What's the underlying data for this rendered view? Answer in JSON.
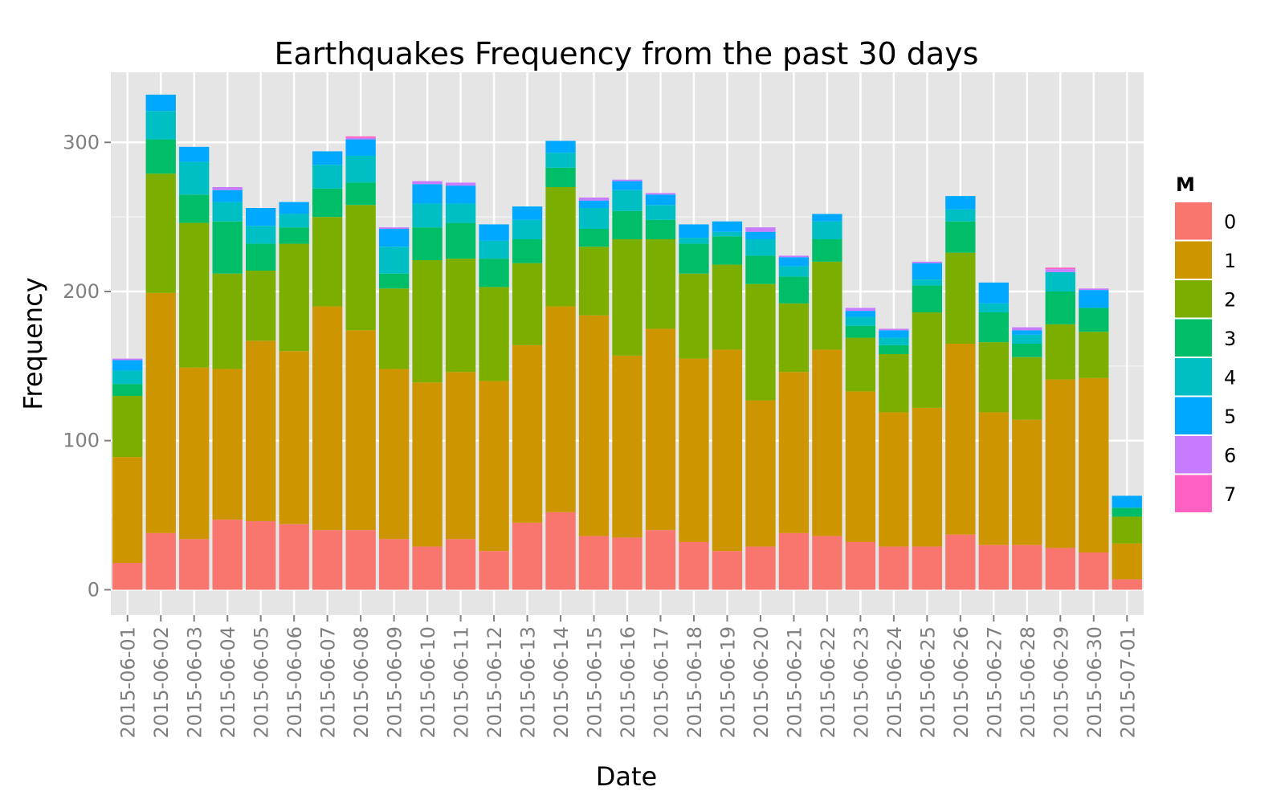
{
  "chart_data": {
    "type": "bar",
    "stacked": true,
    "title": "Earthquakes Frequency from the past 30 days",
    "xlabel": "Date",
    "ylabel": "Frequency",
    "ylim": [
      -17,
      347
    ],
    "yticks": [
      0,
      100,
      200,
      300
    ],
    "grid": true,
    "legend_title": "M",
    "legend_position": "right",
    "categories": [
      "2015-06-01",
      "2015-06-02",
      "2015-06-03",
      "2015-06-04",
      "2015-06-05",
      "2015-06-06",
      "2015-06-07",
      "2015-06-08",
      "2015-06-09",
      "2015-06-10",
      "2015-06-11",
      "2015-06-12",
      "2015-06-13",
      "2015-06-14",
      "2015-06-15",
      "2015-06-16",
      "2015-06-17",
      "2015-06-18",
      "2015-06-19",
      "2015-06-20",
      "2015-06-21",
      "2015-06-22",
      "2015-06-23",
      "2015-06-24",
      "2015-06-25",
      "2015-06-26",
      "2015-06-27",
      "2015-06-28",
      "2015-06-29",
      "2015-06-30",
      "2015-07-01"
    ],
    "series": [
      {
        "name": "0",
        "color": "#F8766D",
        "values": [
          18,
          38,
          34,
          47,
          46,
          44,
          40,
          40,
          34,
          29,
          34,
          26,
          45,
          52,
          36,
          35,
          40,
          32,
          26,
          29,
          38,
          36,
          32,
          29,
          29,
          37,
          30,
          30,
          28,
          25,
          7
        ]
      },
      {
        "name": "1",
        "color": "#CD9600",
        "values": [
          71,
          161,
          115,
          101,
          121,
          116,
          150,
          134,
          114,
          110,
          112,
          114,
          119,
          138,
          148,
          122,
          135,
          123,
          135,
          98,
          108,
          125,
          101,
          90,
          93,
          128,
          89,
          84,
          113,
          117,
          24
        ]
      },
      {
        "name": "2",
        "color": "#7CAE00",
        "values": [
          41,
          80,
          97,
          64,
          47,
          72,
          60,
          84,
          54,
          82,
          76,
          63,
          55,
          80,
          46,
          78,
          60,
          57,
          57,
          78,
          46,
          59,
          36,
          39,
          64,
          61,
          47,
          42,
          37,
          31,
          18
        ]
      },
      {
        "name": "3",
        "color": "#00BE67",
        "values": [
          8,
          23,
          19,
          35,
          18,
          11,
          19,
          15,
          10,
          22,
          24,
          19,
          16,
          13,
          12,
          19,
          13,
          20,
          19,
          19,
          18,
          15,
          8,
          6,
          18,
          21,
          20,
          9,
          22,
          16,
          6
        ]
      },
      {
        "name": "4",
        "color": "#00BFC4",
        "values": [
          9,
          19,
          22,
          13,
          12,
          9,
          16,
          18,
          18,
          16,
          13,
          12,
          13,
          10,
          14,
          14,
          10,
          4,
          3,
          11,
          7,
          12,
          6,
          5,
          4,
          8,
          6,
          6,
          13,
          0,
          0
        ]
      },
      {
        "name": "5",
        "color": "#00A9FF",
        "values": [
          7,
          11,
          10,
          8,
          12,
          8,
          9,
          11,
          12,
          13,
          12,
          11,
          9,
          8,
          5,
          6,
          7,
          9,
          7,
          5,
          6,
          5,
          4,
          5,
          11,
          9,
          14,
          3,
          0,
          12,
          8
        ]
      },
      {
        "name": "6",
        "color": "#C77CFF",
        "values": [
          1,
          0,
          0,
          2,
          0,
          0,
          0,
          1,
          1,
          2,
          2,
          0,
          0,
          0,
          2,
          1,
          1,
          0,
          0,
          3,
          1,
          0,
          2,
          1,
          1,
          0,
          0,
          2,
          2,
          1,
          0
        ]
      },
      {
        "name": "7",
        "color": "#FF61C3",
        "values": [
          0,
          0,
          0,
          0,
          0,
          0,
          0,
          1,
          0,
          0,
          0,
          0,
          0,
          0,
          0,
          0,
          0,
          0,
          0,
          0,
          0,
          0,
          0,
          0,
          0,
          0,
          0,
          0,
          1,
          0,
          0
        ]
      }
    ],
    "colors": {
      "panel_background": "#E5E5E5",
      "grid_major": "#FFFFFF",
      "grid_minor": "#F2F2F2"
    }
  }
}
